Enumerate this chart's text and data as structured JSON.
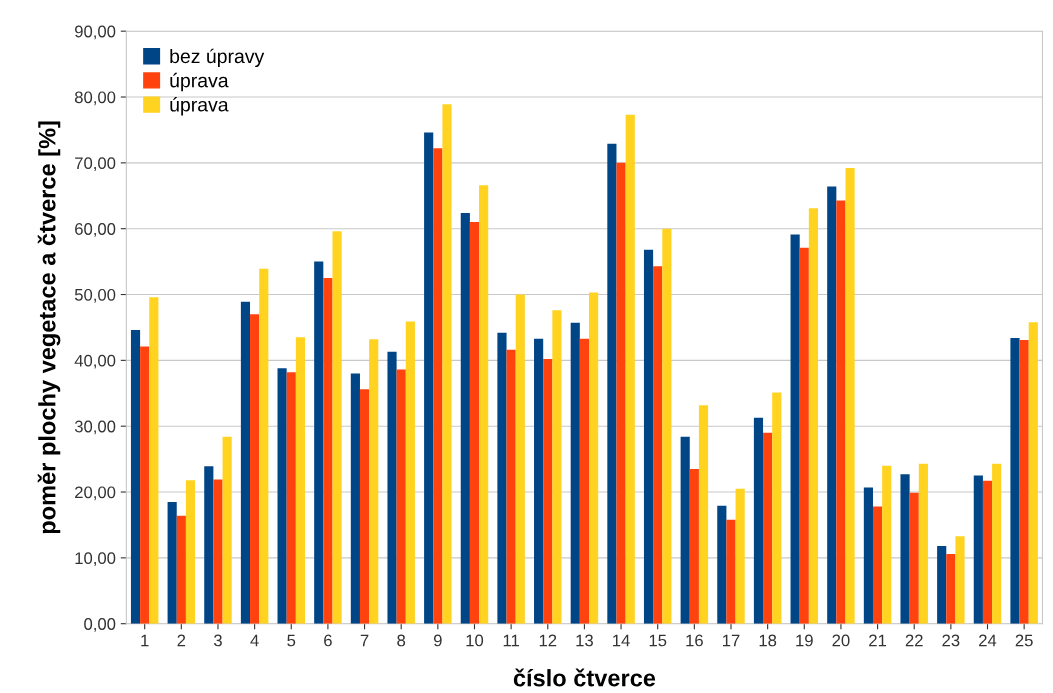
{
  "chart_data": {
    "type": "bar",
    "xlabel": "číslo čtverce",
    "ylabel": "poměr plochy vegetace a čtverce [%]",
    "categories": [
      "1",
      "2",
      "3",
      "4",
      "5",
      "6",
      "7",
      "8",
      "9",
      "10",
      "11",
      "12",
      "13",
      "14",
      "15",
      "16",
      "17",
      "18",
      "19",
      "20",
      "21",
      "22",
      "23",
      "24",
      "25"
    ],
    "series": [
      {
        "name": "bez úpravy",
        "color": "#004586",
        "values": [
          44.6,
          18.5,
          23.9,
          48.9,
          38.8,
          55.0,
          38.0,
          41.3,
          74.6,
          62.4,
          44.2,
          43.3,
          45.7,
          72.9,
          56.8,
          28.4,
          17.9,
          31.3,
          59.1,
          66.4,
          20.7,
          22.7,
          11.8,
          22.5,
          43.4
        ]
      },
      {
        "name": "úprava",
        "color": "#ff420e",
        "values": [
          42.1,
          16.4,
          21.9,
          47.0,
          38.2,
          52.5,
          35.6,
          38.6,
          72.2,
          61.0,
          41.6,
          40.2,
          43.3,
          70.0,
          54.3,
          23.5,
          15.8,
          29.0,
          57.1,
          64.3,
          17.8,
          19.9,
          10.6,
          21.7,
          43.1
        ]
      },
      {
        "name": "úprava",
        "color": "#ffd320",
        "values": [
          49.6,
          21.8,
          28.4,
          53.9,
          43.5,
          59.6,
          43.2,
          45.9,
          78.9,
          66.6,
          50.0,
          47.6,
          50.3,
          77.3,
          60.0,
          33.2,
          20.5,
          35.1,
          63.1,
          69.2,
          24.0,
          24.3,
          13.3,
          24.3,
          45.8
        ]
      }
    ],
    "ylim": [
      0,
      90
    ],
    "yticks": [
      {
        "value": 0,
        "label": "0,00"
      },
      {
        "value": 10,
        "label": "10,00"
      },
      {
        "value": 20,
        "label": "20,00"
      },
      {
        "value": 30,
        "label": "30,00"
      },
      {
        "value": 40,
        "label": "40,00"
      },
      {
        "value": 50,
        "label": "50,00"
      },
      {
        "value": 60,
        "label": "60,00"
      },
      {
        "value": 70,
        "label": "70,00"
      },
      {
        "value": 80,
        "label": "80,00"
      },
      {
        "value": 90,
        "label": "90,00"
      }
    ],
    "grid": "y",
    "legend": "top left"
  }
}
